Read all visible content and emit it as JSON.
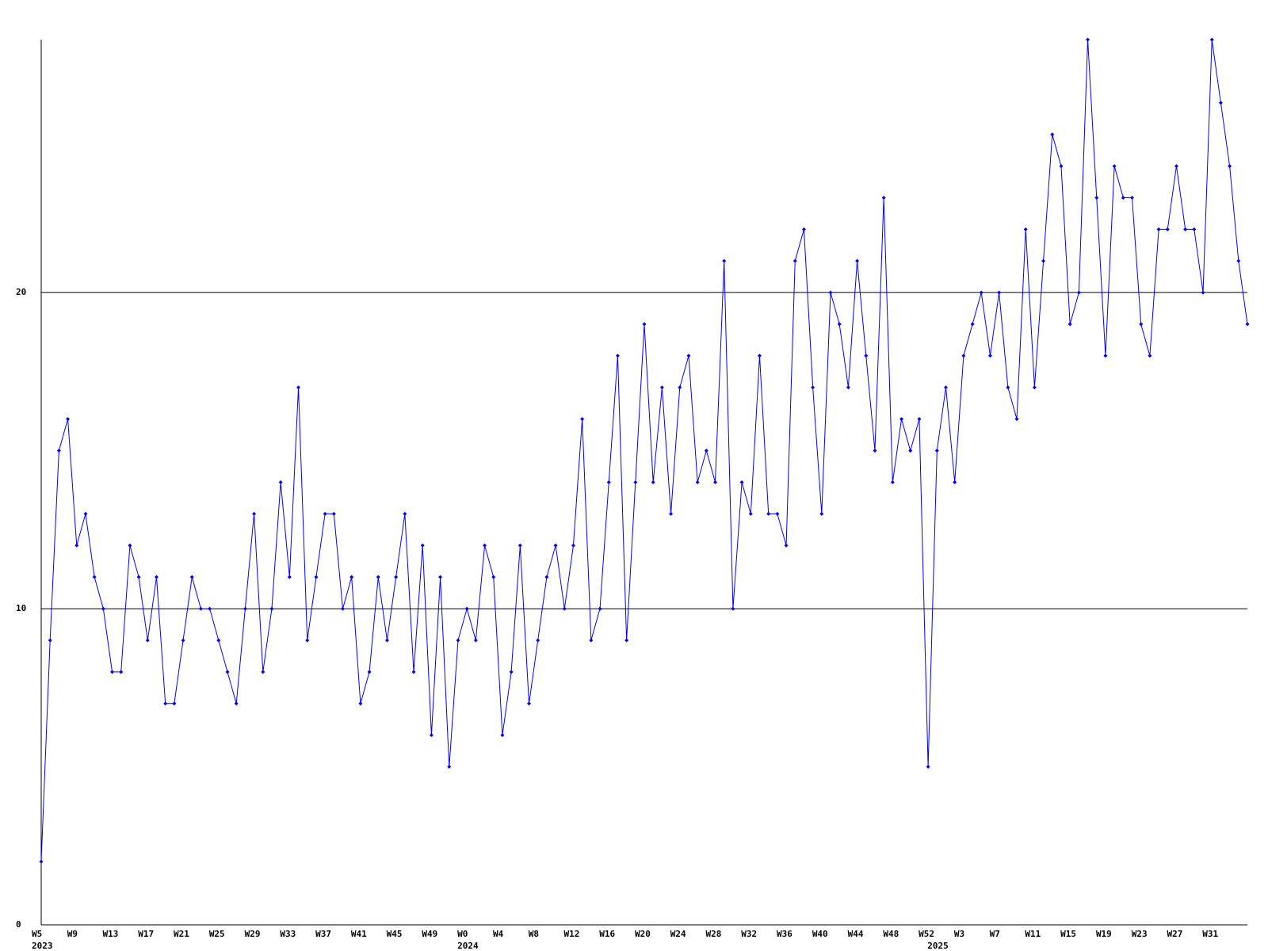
{
  "chart_data": {
    "type": "line",
    "categories": [
      "W5",
      null,
      null,
      null,
      "W9",
      null,
      null,
      null,
      "W13",
      null,
      null,
      null,
      "W17",
      null,
      null,
      null,
      "W21",
      null,
      null,
      null,
      "W25",
      null,
      null,
      null,
      "W29",
      null,
      null,
      null,
      "W33",
      null,
      null,
      null,
      "W37",
      null,
      null,
      null,
      "W41",
      null,
      null,
      null,
      "W45",
      null,
      null,
      null,
      "W49",
      null,
      null,
      null,
      "W0",
      null,
      null,
      null,
      "W4",
      null,
      null,
      null,
      "W8",
      null,
      null,
      null,
      "W12",
      null,
      null,
      null,
      "W16",
      null,
      null,
      null,
      "W20",
      null,
      null,
      null,
      "W24",
      null,
      null,
      null,
      "W28",
      null,
      null,
      null,
      "W32",
      null,
      null,
      null,
      "W36",
      null,
      null,
      null,
      "W40",
      null,
      null,
      null,
      "W44",
      null,
      null,
      null,
      "W48",
      null,
      null,
      null,
      "W52",
      null,
      null,
      null,
      "W3",
      null,
      null,
      null,
      "W7",
      null,
      null,
      null,
      "W11",
      null,
      null,
      null,
      "W15",
      null,
      null,
      null,
      "W19",
      null,
      null,
      null,
      "W23",
      null,
      null,
      null,
      "W27",
      null,
      null,
      null,
      "W31",
      null,
      null,
      null,
      null
    ],
    "year_labels": [
      "2023",
      null,
      null,
      null,
      null,
      null,
      null,
      null,
      null,
      null,
      null,
      null,
      null,
      null,
      null,
      null,
      null,
      null,
      null,
      null,
      null,
      null,
      null,
      null,
      null,
      null,
      null,
      null,
      null,
      null,
      null,
      null,
      null,
      null,
      null,
      null,
      null,
      null,
      null,
      null,
      null,
      null,
      null,
      null,
      null,
      null,
      null,
      null,
      "2024",
      null,
      null,
      null,
      null,
      null,
      null,
      null,
      null,
      null,
      null,
      null,
      null,
      null,
      null,
      null,
      null,
      null,
      null,
      null,
      null,
      null,
      null,
      null,
      null,
      null,
      null,
      null,
      null,
      null,
      null,
      null,
      null,
      null,
      null,
      null,
      null,
      null,
      null,
      null,
      null,
      null,
      null,
      null,
      null,
      null,
      null,
      null,
      null,
      null,
      null,
      null,
      null,
      "2025",
      null,
      null,
      null,
      null,
      null,
      null,
      null,
      null,
      null,
      null,
      null,
      null,
      null,
      null,
      null,
      null,
      null,
      null,
      null,
      null,
      null,
      null,
      null,
      null,
      null,
      null,
      null,
      null,
      null,
      null,
      null,
      null,
      null,
      null,
      null
    ],
    "series": [
      {
        "color": "#0000ff",
        "values": [
          2,
          9,
          15,
          16,
          12,
          13,
          11,
          10,
          8,
          8,
          12,
          11,
          9,
          11,
          7,
          7,
          9,
          11,
          10,
          10,
          9,
          8,
          7,
          10,
          13,
          8,
          10,
          14,
          11,
          17,
          9,
          11,
          13,
          13,
          10,
          11,
          7,
          8,
          11,
          9,
          11,
          13,
          8,
          12,
          6,
          11,
          5,
          9,
          10,
          9,
          12,
          11,
          6,
          8,
          12,
          7,
          9,
          11,
          12,
          10,
          12,
          16,
          9,
          10,
          14,
          18,
          9,
          14,
          19,
          14,
          17,
          13,
          17,
          18,
          14,
          15,
          14,
          21,
          10,
          14,
          13,
          18,
          13,
          13,
          12,
          21,
          22,
          17,
          13,
          20,
          19,
          17,
          21,
          18,
          15,
          23,
          14,
          16,
          15,
          16,
          5,
          15,
          17,
          14,
          18,
          19,
          20,
          18,
          20,
          17,
          16,
          22,
          17,
          21,
          25,
          24,
          19,
          20,
          28,
          23,
          18,
          24,
          23,
          23,
          19,
          18,
          22,
          22,
          24,
          22,
          22,
          20,
          28,
          26,
          24,
          21,
          19
        ]
      }
    ],
    "ylim": [
      0,
      28
    ],
    "yticks": [
      0,
      10,
      20
    ],
    "grid": true
  }
}
